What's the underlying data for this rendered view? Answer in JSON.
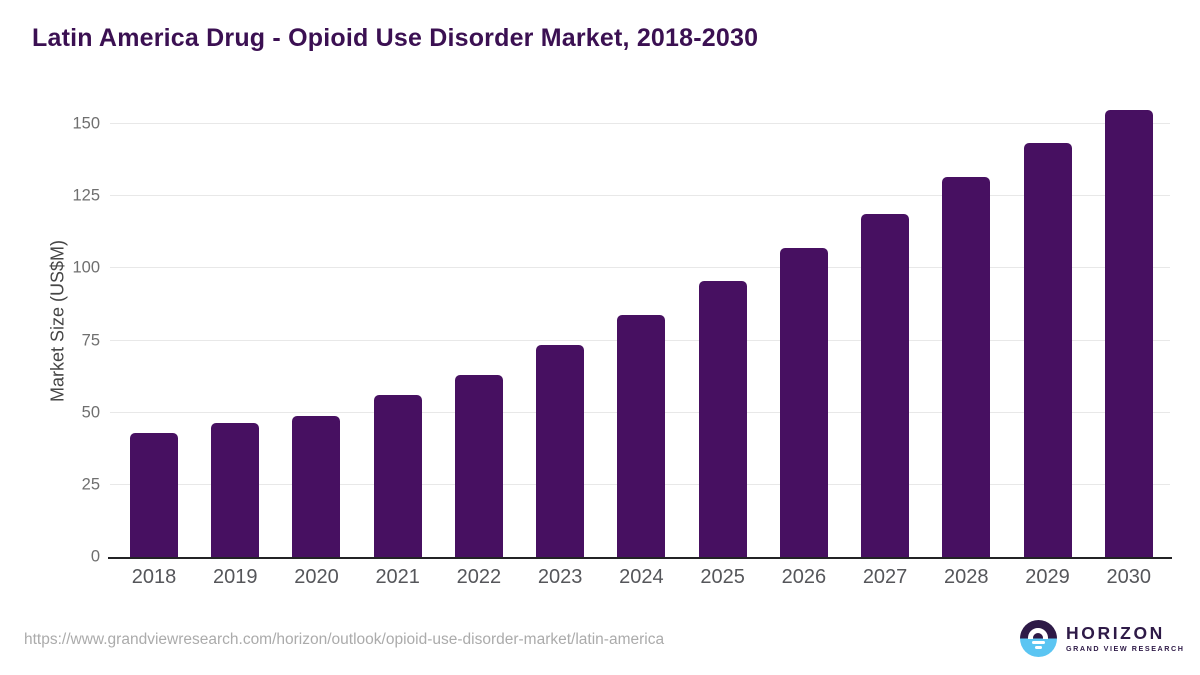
{
  "page": {
    "title": "Latin America Drug - Opioid Use Disorder Market, 2018-2030"
  },
  "chart_data": {
    "type": "bar",
    "title": "Latin America Drug - Opioid Use Disorder Market, 2018-2030",
    "categories": [
      "2018",
      "2019",
      "2020",
      "2021",
      "2022",
      "2023",
      "2024",
      "2025",
      "2026",
      "2027",
      "2028",
      "2029",
      "2030"
    ],
    "values": [
      43,
      46.5,
      49,
      56,
      63,
      73.5,
      84,
      95.5,
      107,
      119,
      131.5,
      143.5,
      155
    ],
    "xlabel": "",
    "ylabel": "Market Size (US$M)",
    "ylim": [
      0,
      158
    ],
    "yticks": [
      0,
      25,
      50,
      75,
      100,
      125,
      150
    ],
    "grid": "horizontal",
    "legend": "none",
    "bar_color": "#471061"
  },
  "footer": {
    "source_url": "https://www.grandviewresearch.com/horizon/outlook/opioid-use-disorder-market/latin-america",
    "logo": {
      "brand": "HORIZON",
      "sub_brand": "GRAND VIEW RESEARCH"
    }
  },
  "colors": {
    "title_text": "#3B1052",
    "bar_fill": "#471061",
    "axis_line": "#232325",
    "gridline": "#e8e8e8",
    "y_tick_label": "#6f6f6f",
    "x_tick_label": "#55565a",
    "url_text": "#ababab",
    "logo_dark_purple": "#2E1A47",
    "logo_sky_blue": "#5BC5F2"
  }
}
